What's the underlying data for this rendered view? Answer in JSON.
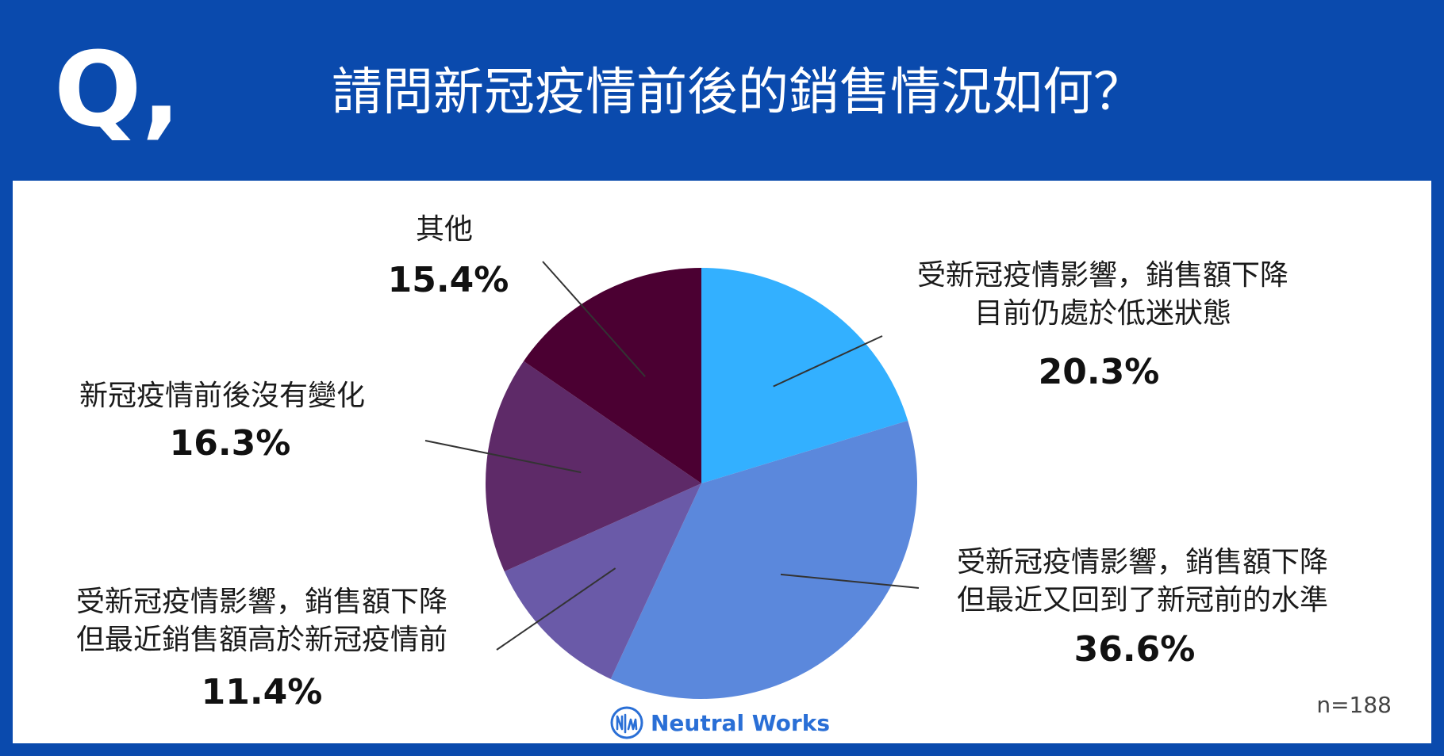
{
  "header": {
    "q_letter": "Q,",
    "title": "請問新冠疫情前後的銷售情況如何？"
  },
  "footnote": "n=188",
  "brand": {
    "name": "Neutral Works",
    "icon": "neutral-works-logo-icon"
  },
  "colors": {
    "frame": "#0a4aad"
  },
  "chart_data": {
    "type": "pie",
    "title": "請問新冠疫情前後的銷售情況如何？",
    "start_angle_deg": 0,
    "direction": "clockwise",
    "n": 188,
    "slices": [
      {
        "key": "s1",
        "label_lines": [
          "受新冠疫情影響，銷售額下降",
          "目前仍處於低迷狀態"
        ],
        "value": 20.3,
        "display": "20.3%",
        "color": "#33b0ff"
      },
      {
        "key": "s2",
        "label_lines": [
          "受新冠疫情影響，銷售額下降",
          "但最近又回到了新冠前的水準"
        ],
        "value": 36.6,
        "display": "36.6%",
        "color": "#5b88dc"
      },
      {
        "key": "s3",
        "label_lines": [
          "受新冠疫情影響，銷售額下降",
          "但最近銷售額高於新冠疫情前"
        ],
        "value": 11.4,
        "display": "11.4%",
        "color": "#6a5aa8"
      },
      {
        "key": "s4",
        "label_lines": [
          "新冠疫情前後沒有變化"
        ],
        "value": 16.3,
        "display": "16.3%",
        "color": "#5e2a68"
      },
      {
        "key": "s5",
        "label_lines": [
          "其他"
        ],
        "value": 15.4,
        "display": "15.4%",
        "color": "#4b0032"
      }
    ]
  }
}
